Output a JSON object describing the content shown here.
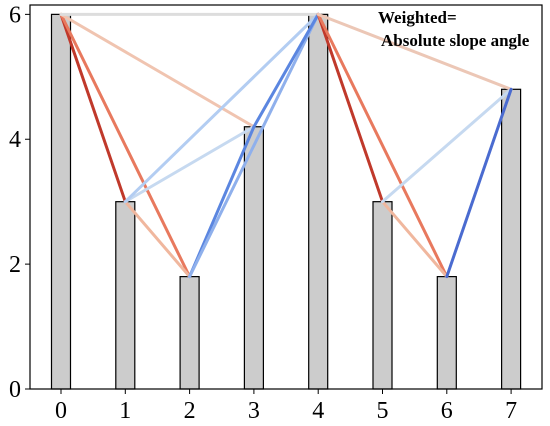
{
  "chart_data": {
    "type": "bar",
    "categories": [
      "0",
      "1",
      "2",
      "3",
      "4",
      "5",
      "6",
      "7"
    ],
    "values": [
      6,
      3,
      1.8,
      4.2,
      6,
      3,
      1.8,
      4.8
    ],
    "ylim": [
      0,
      6.15
    ],
    "y_ticks": [
      "0",
      "2",
      "4",
      "6"
    ],
    "bar_color": "#cccccc",
    "annotation": [
      "Weighted=",
      "Absolute slope angle"
    ],
    "visibility_edges": [
      {
        "from": 0,
        "to": 1,
        "color": "#c0392b"
      },
      {
        "from": 0,
        "to": 2,
        "color": "#e8795e"
      },
      {
        "from": 0,
        "to": 3,
        "color": "#f0c4b0"
      },
      {
        "from": 0,
        "to": 4,
        "color": "#dddddd"
      },
      {
        "from": 1,
        "to": 2,
        "color": "#f0b79e"
      },
      {
        "from": 1,
        "to": 3,
        "color": "#c6d9f0"
      },
      {
        "from": 1,
        "to": 4,
        "color": "#b3cdf2"
      },
      {
        "from": 2,
        "to": 3,
        "color": "#5b86e0"
      },
      {
        "from": 2,
        "to": 4,
        "color": "#8fb0ec"
      },
      {
        "from": 3,
        "to": 4,
        "color": "#5b86e0"
      },
      {
        "from": 4,
        "to": 5,
        "color": "#c0392b"
      },
      {
        "from": 4,
        "to": 6,
        "color": "#e8795e"
      },
      {
        "from": 4,
        "to": 7,
        "color": "#ecc7b6"
      },
      {
        "from": 5,
        "to": 6,
        "color": "#f0b79e"
      },
      {
        "from": 5,
        "to": 7,
        "color": "#c6d9f0"
      },
      {
        "from": 6,
        "to": 7,
        "color": "#4a6bd0"
      }
    ]
  }
}
